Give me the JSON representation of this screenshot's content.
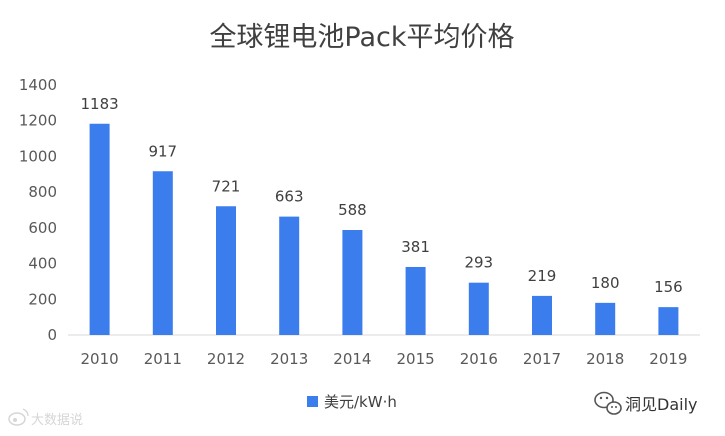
{
  "chart_data": {
    "type": "bar",
    "title": "全球锂电池Pack平均价格",
    "categories": [
      "2010",
      "2011",
      "2012",
      "2013",
      "2014",
      "2015",
      "2016",
      "2017",
      "2018",
      "2019"
    ],
    "series": [
      {
        "name": "美元/kWh",
        "display_name": "美元/kW·h",
        "values": [
          1183,
          917,
          721,
          663,
          588,
          381,
          293,
          219,
          180,
          156
        ],
        "color": "#3b7ded"
      }
    ],
    "ylim": [
      0,
      1400
    ],
    "yticks": [
      0,
      200,
      400,
      600,
      800,
      1000,
      1200,
      1400
    ],
    "xlabel": "",
    "ylabel": "",
    "legend_position": "bottom-center",
    "grid": false,
    "data_labels": true
  },
  "watermarks": {
    "left": "大数据说",
    "right": "洞见Daily"
  },
  "icons": {
    "left": "weibo-icon",
    "right": "wechat-icon"
  }
}
